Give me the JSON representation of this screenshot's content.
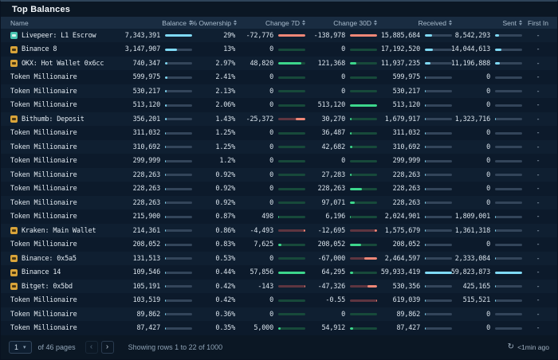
{
  "title": "Top Balances",
  "columns": [
    {
      "label": "Name",
      "sortable": false
    },
    {
      "label": "Balance",
      "sortable": true
    },
    {
      "label": "% Ownership",
      "sortable": true
    },
    {
      "label": "Change 7D",
      "sortable": true
    },
    {
      "label": "Change 30D",
      "sortable": true
    },
    {
      "label": "Received",
      "sortable": true
    },
    {
      "label": "Sent",
      "sortable": true
    },
    {
      "label": "First In",
      "sortable": false
    }
  ],
  "rows": [
    {
      "name": "Livepeer: L1 Escrow",
      "icon": "teal",
      "balance": "7,343,391",
      "ownership": "29%",
      "change7d": "-72,776",
      "change30d": "-138,978",
      "received": "15,885,684",
      "sent": "8,542,293",
      "first_in": "-"
    },
    {
      "name": "Binance 8",
      "icon": "gold",
      "balance": "3,147,907",
      "ownership": "13%",
      "change7d": "0",
      "change30d": "0",
      "received": "17,192,520",
      "sent": "14,044,613",
      "first_in": "-"
    },
    {
      "name": "OKX: Hot Wallet 0x6cc",
      "icon": "gold",
      "balance": "740,347",
      "ownership": "2.97%",
      "change7d": "48,820",
      "change30d": "121,368",
      "received": "11,937,235",
      "sent": "11,196,888",
      "first_in": "-"
    },
    {
      "name": "Token Millionaire",
      "icon": null,
      "balance": "599,975",
      "ownership": "2.41%",
      "change7d": "0",
      "change30d": "0",
      "received": "599,975",
      "sent": "0",
      "first_in": "-"
    },
    {
      "name": "Token Millionaire",
      "icon": null,
      "balance": "530,217",
      "ownership": "2.13%",
      "change7d": "0",
      "change30d": "0",
      "received": "530,217",
      "sent": "0",
      "first_in": "-"
    },
    {
      "name": "Token Millionaire",
      "icon": null,
      "balance": "513,120",
      "ownership": "2.06%",
      "change7d": "0",
      "change30d": "513,120",
      "received": "513,120",
      "sent": "0",
      "first_in": "-"
    },
    {
      "name": "Bithumb: Deposit",
      "icon": "gold",
      "balance": "356,201",
      "ownership": "1.43%",
      "change7d": "-25,372",
      "change30d": "30,270",
      "received": "1,679,917",
      "sent": "1,323,716",
      "first_in": "-"
    },
    {
      "name": "Token Millionaire",
      "icon": null,
      "balance": "311,032",
      "ownership": "1.25%",
      "change7d": "0",
      "change30d": "36,487",
      "received": "311,032",
      "sent": "0",
      "first_in": "-"
    },
    {
      "name": "Token Millionaire",
      "icon": null,
      "balance": "310,692",
      "ownership": "1.25%",
      "change7d": "0",
      "change30d": "42,682",
      "received": "310,692",
      "sent": "0",
      "first_in": "-"
    },
    {
      "name": "Token Millionaire",
      "icon": null,
      "balance": "299,999",
      "ownership": "1.2%",
      "change7d": "0",
      "change30d": "0",
      "received": "299,999",
      "sent": "0",
      "first_in": "-"
    },
    {
      "name": "Token Millionaire",
      "icon": null,
      "balance": "228,263",
      "ownership": "0.92%",
      "change7d": "0",
      "change30d": "27,283",
      "received": "228,263",
      "sent": "0",
      "first_in": "-"
    },
    {
      "name": "Token Millionaire",
      "icon": null,
      "balance": "228,263",
      "ownership": "0.92%",
      "change7d": "0",
      "change30d": "228,263",
      "received": "228,263",
      "sent": "0",
      "first_in": "-"
    },
    {
      "name": "Token Millionaire",
      "icon": null,
      "balance": "228,263",
      "ownership": "0.92%",
      "change7d": "0",
      "change30d": "97,071",
      "received": "228,263",
      "sent": "0",
      "first_in": "-"
    },
    {
      "name": "Token Millionaire",
      "icon": null,
      "balance": "215,900",
      "ownership": "0.87%",
      "change7d": "498",
      "change30d": "6,196",
      "received": "2,024,901",
      "sent": "1,809,001",
      "first_in": "-"
    },
    {
      "name": "Kraken: Main Wallet",
      "icon": "gold",
      "balance": "214,361",
      "ownership": "0.86%",
      "change7d": "-4,493",
      "change30d": "-12,695",
      "received": "1,575,679",
      "sent": "1,361,318",
      "first_in": "-"
    },
    {
      "name": "Token Millionaire",
      "icon": null,
      "balance": "208,052",
      "ownership": "0.83%",
      "change7d": "7,625",
      "change30d": "208,052",
      "received": "208,052",
      "sent": "0",
      "first_in": "-"
    },
    {
      "name": "Binance: 0x5a5",
      "icon": "gold",
      "balance": "131,513",
      "ownership": "0.53%",
      "change7d": "0",
      "change30d": "-67,000",
      "received": "2,464,597",
      "sent": "2,333,084",
      "first_in": "-"
    },
    {
      "name": "Binance 14",
      "icon": "gold",
      "balance": "109,546",
      "ownership": "0.44%",
      "change7d": "57,856",
      "change30d": "64,295",
      "received": "59,933,419",
      "sent": "59,823,873",
      "first_in": "-"
    },
    {
      "name": "Bitget: 0x5bd",
      "icon": "gold",
      "balance": "105,191",
      "ownership": "0.42%",
      "change7d": "-143",
      "change30d": "-47,326",
      "received": "530,356",
      "sent": "425,165",
      "first_in": "-"
    },
    {
      "name": "Token Millionaire",
      "icon": null,
      "balance": "103,519",
      "ownership": "0.42%",
      "change7d": "0",
      "change30d": "-0.55",
      "received": "619,039",
      "sent": "515,521",
      "first_in": "-"
    },
    {
      "name": "Token Millionaire",
      "icon": null,
      "balance": "89,862",
      "ownership": "0.36%",
      "change7d": "0",
      "change30d": "0",
      "received": "89,862",
      "sent": "0",
      "first_in": "-"
    },
    {
      "name": "Token Millionaire",
      "icon": null,
      "balance": "87,427",
      "ownership": "0.35%",
      "change7d": "5,000",
      "change30d": "54,912",
      "received": "87,427",
      "sent": "0",
      "first_in": "-"
    }
  ],
  "footer": {
    "page": "1",
    "pages_label": "of 46 pages",
    "showing": "Showing rows 1 to 22 of 1000",
    "updated": "<1min ago"
  },
  "colors": {
    "accent_cyan": "#7fd9f5",
    "positive_green": "#3dd68c",
    "negative_red": "#ef8777",
    "exchange_gold": "#d9a43a",
    "contract_teal": "#49c5b1",
    "header_bg": "#192c41",
    "row_odd": "#0f1f31",
    "row_even": "#0c1a2b"
  }
}
